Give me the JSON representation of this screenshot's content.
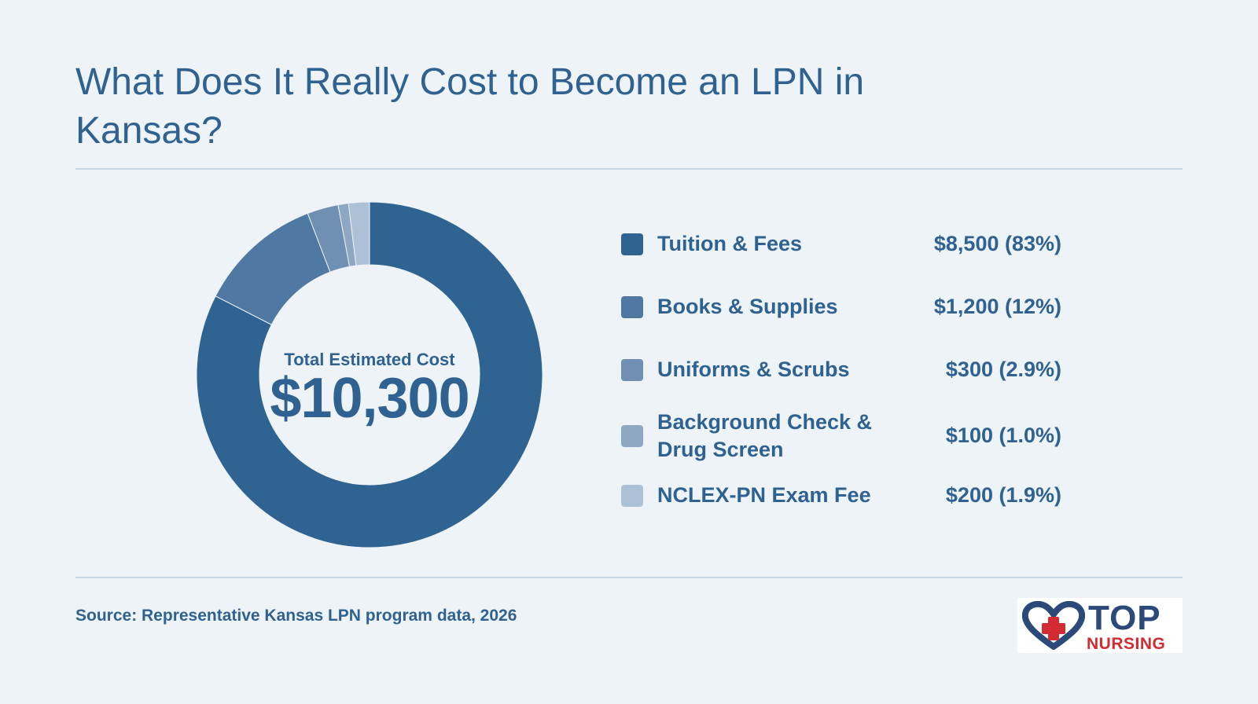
{
  "title": "What Does It Really Cost to Become an LPN in Kansas?",
  "source": "Source: Representative Kansas LPN program data, 2026",
  "logo": {
    "word_top": "TOP",
    "word_bottom": "NURSING",
    "icon": "heart-cross-icon"
  },
  "colors": {
    "background": "#edf3f7",
    "text": "#2f6191",
    "rule": "#c9d6e3",
    "logo_navy": "#2b4a7a",
    "logo_red": "#d32b32"
  },
  "chart_data": {
    "type": "pie",
    "variant": "donut",
    "title": "What Does It Really Cost to Become an LPN in Kansas?",
    "center_label": "Total Estimated Cost",
    "center_value": "$10,300",
    "total": 10300,
    "legend_position": "right",
    "slices": [
      {
        "label": "Tuition & Fees",
        "value": 8500,
        "display": "$8,500 (83%)",
        "color": "#2f6391"
      },
      {
        "label": "Books & Supplies",
        "value": 1200,
        "display": "$1,200 (12%)",
        "color": "#4f79a2"
      },
      {
        "label": "Uniforms & Scrubs",
        "value": 300,
        "display": "$300 (2.9%)",
        "color": "#6f90b2"
      },
      {
        "label": "Background Check & Drug Screen",
        "value": 100,
        "display": "$100 (1.0%)",
        "color": "#8ea8c4"
      },
      {
        "label": "NCLEX-PN Exam Fee",
        "value": 200,
        "display": "$200 (1.9%)",
        "color": "#adc1d6"
      }
    ]
  }
}
